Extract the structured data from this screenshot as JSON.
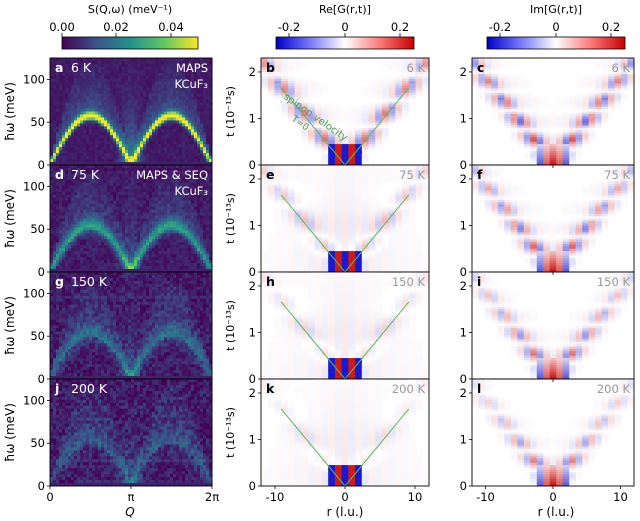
{
  "chart_data": {
    "type": "heatmap",
    "colorbars": [
      {
        "label": "S(Q,ω) (meV⁻¹)",
        "ticks": [
          "0.00",
          "0.02",
          "0.04"
        ],
        "range": [
          0,
          0.05
        ],
        "colormap": "viridis"
      },
      {
        "label": "Re[G(r,t)]",
        "ticks": [
          "-0.2",
          "0",
          "0.2"
        ],
        "range": [
          -0.25,
          0.25
        ],
        "colormap": "bwr"
      },
      {
        "label": "Im[G(r,t)]",
        "ticks": [
          "-0.2",
          "0",
          "0.2"
        ],
        "range": [
          -0.25,
          0.25
        ],
        "colormap": "bwr"
      }
    ],
    "col1": {
      "ylabel": "ħω (meV)",
      "xlabel": "Q",
      "yticks": [
        "0",
        "50",
        "100"
      ],
      "xticks": [
        "0",
        "π",
        "2π"
      ],
      "ylim": [
        0,
        125
      ]
    },
    "col23": {
      "ylabel": "t (10⁻¹³s)",
      "xlabel": "r (l.u.)",
      "yticks": [
        "0",
        "1",
        "2"
      ],
      "xticks": [
        "-10",
        "0",
        "10"
      ],
      "xlim": [
        -12,
        12
      ],
      "ylim": [
        0,
        2.3
      ]
    },
    "spinon_label": "spinon velocity",
    "spinon_sublabel": "T=0",
    "spinon_velocity_lu_per_1e13s": 5.5,
    "rows": [
      {
        "temp": "6 K",
        "dataset": "MAPS",
        "compound": "KCuF₃",
        "letters": [
          "a",
          "b",
          "c"
        ],
        "dispersion_max_meV": 58,
        "intensity": 1.0,
        "broadening": 0.15
      },
      {
        "temp": "75 K",
        "dataset": "MAPS & SEQ",
        "compound": "KCuF₃",
        "letters": [
          "d",
          "e",
          "f"
        ],
        "dispersion_max_meV": 55,
        "intensity": 0.55,
        "broadening": 0.45
      },
      {
        "temp": "150 K",
        "dataset": "",
        "compound": "",
        "letters": [
          "g",
          "h",
          "i"
        ],
        "dispersion_max_meV": 55,
        "intensity": 0.4,
        "broadening": 0.75
      },
      {
        "temp": "200 K",
        "dataset": "",
        "compound": "",
        "letters": [
          "j",
          "k",
          "l"
        ],
        "dispersion_max_meV": 55,
        "intensity": 0.32,
        "broadening": 0.9
      }
    ]
  }
}
